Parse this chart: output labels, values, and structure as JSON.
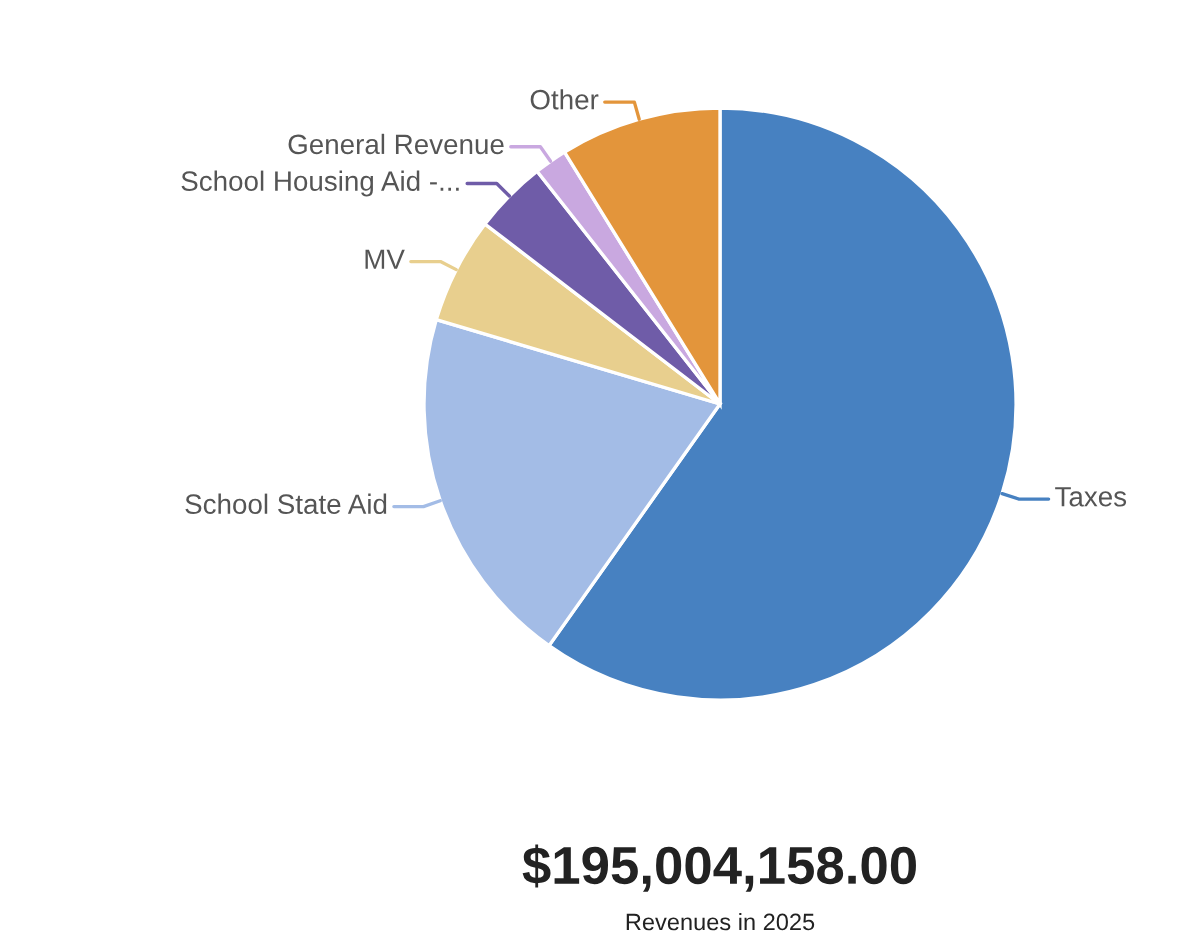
{
  "chart_data": {
    "type": "pie",
    "title": "$195,004,158.00",
    "subtitle": "Revenues in 2025",
    "categories": [
      "Taxes",
      "School State Aid",
      "MV",
      "School Housing Aid -...",
      "General Revenue",
      "Other"
    ],
    "values": [
      59.8,
      19.8,
      5.8,
      4.0,
      1.8,
      8.8
    ],
    "colors": [
      "#4781c1",
      "#a3bce6",
      "#e8cf8e",
      "#6f5ca8",
      "#c9a8e0",
      "#e3953b"
    ]
  }
}
